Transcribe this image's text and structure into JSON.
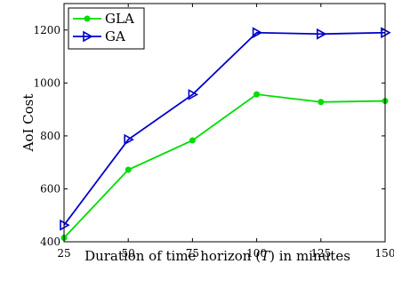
{
  "chart_data": {
    "type": "line",
    "x": [
      25,
      50,
      75,
      100,
      125,
      150
    ],
    "xlim": [
      25,
      150
    ],
    "ylim": [
      400,
      1300
    ],
    "xticks": [
      "25",
      "50",
      "75",
      "100",
      "125",
      "150"
    ],
    "yticks": [
      "400",
      "600",
      "800",
      "1000",
      "1200"
    ],
    "xlabel_pre": "Duration of time horizon (",
    "xlabel_var": "T",
    "xlabel_post": ") in minutes",
    "ylabel": "AoI Cost",
    "legend_position": "top-left",
    "grid": false,
    "series": [
      {
        "name": "GLA",
        "color": "#00dd00",
        "marker": "circle",
        "values": [
          415,
          672,
          783,
          957,
          928,
          932
        ]
      },
      {
        "name": "GA",
        "color": "#0000cc",
        "marker": "triangle-right",
        "values": [
          463,
          786,
          956,
          1190,
          1185,
          1190
        ]
      }
    ]
  }
}
